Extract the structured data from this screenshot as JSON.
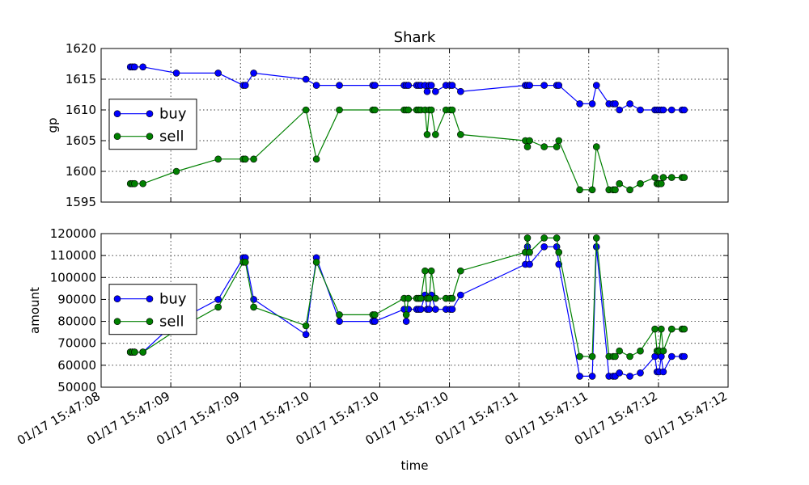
{
  "colors": {
    "buy": "#0000ff",
    "sell": "#008000"
  },
  "chart_data": [
    {
      "type": "line",
      "title": "Shark",
      "xlabel": "",
      "ylabel": "gp",
      "ylim": [
        1595,
        1620
      ],
      "yticks": [
        1595,
        1600,
        1605,
        1610,
        1615,
        1620
      ],
      "grid": true,
      "legend_position": "center-left",
      "xlim": [
        0,
        30
      ],
      "series": [
        {
          "name": "buy",
          "color": "#0000ff",
          "x": [
            1.4,
            1.5,
            1.6,
            2.0,
            3.6,
            5.6,
            6.8,
            6.9,
            7.3,
            9.8,
            10.3,
            11.4,
            13.0,
            13.1,
            14.5,
            14.6,
            14.7,
            15.1,
            15.2,
            15.3,
            15.5,
            15.6,
            15.7,
            15.8,
            16.0,
            16.5,
            16.7,
            16.8,
            17.2,
            20.3,
            20.4,
            20.5,
            21.2,
            21.8,
            21.9,
            22.9,
            23.5,
            23.7,
            24.3,
            24.5,
            24.6,
            24.8,
            25.3,
            25.8,
            26.5,
            26.6,
            26.7,
            26.8,
            26.9,
            27.3,
            27.8,
            27.9
          ],
          "values": [
            1617,
            1617,
            1617,
            1617,
            1616,
            1616,
            1614,
            1614,
            1616,
            1615,
            1614,
            1614,
            1614,
            1614,
            1614,
            1614,
            1614,
            1614,
            1614,
            1614,
            1614,
            1613,
            1614,
            1614,
            1613,
            1614,
            1614,
            1614,
            1613,
            1614,
            1614,
            1614,
            1614,
            1614,
            1614,
            1611,
            1611,
            1614,
            1611,
            1611,
            1611,
            1610,
            1611,
            1610,
            1610,
            1610,
            1610,
            1610,
            1610,
            1610,
            1610,
            1610
          ]
        },
        {
          "name": "sell",
          "color": "#008000",
          "x": [
            1.4,
            1.5,
            1.6,
            2.0,
            3.6,
            5.6,
            6.8,
            6.9,
            7.3,
            9.8,
            10.3,
            11.4,
            13.0,
            13.1,
            14.5,
            14.6,
            14.7,
            15.1,
            15.2,
            15.3,
            15.5,
            15.6,
            15.7,
            15.8,
            16.0,
            16.5,
            16.7,
            16.8,
            17.2,
            20.3,
            20.4,
            20.5,
            21.2,
            21.8,
            21.9,
            22.9,
            23.5,
            23.7,
            24.3,
            24.5,
            24.6,
            24.8,
            25.3,
            25.8,
            26.5,
            26.6,
            26.7,
            26.8,
            26.9,
            27.3,
            27.8,
            27.9
          ],
          "values": [
            1598,
            1598,
            1598,
            1598,
            1600,
            1602,
            1602,
            1602,
            1602,
            1610,
            1602,
            1610,
            1610,
            1610,
            1610,
            1610,
            1610,
            1610,
            1610,
            1610,
            1610,
            1606,
            1610,
            1610,
            1606,
            1610,
            1610,
            1610,
            1606,
            1605,
            1604,
            1605,
            1604,
            1604,
            1605,
            1597,
            1597,
            1604,
            1597,
            1597,
            1597,
            1598,
            1597,
            1598,
            1599,
            1598,
            1598,
            1598,
            1599,
            1599,
            1599,
            1599
          ]
        }
      ]
    },
    {
      "type": "line",
      "title": "",
      "xlabel": "time",
      "ylabel": "amount",
      "ylim": [
        50000,
        120000
      ],
      "yticks": [
        50000,
        60000,
        70000,
        80000,
        90000,
        100000,
        110000,
        120000
      ],
      "grid": true,
      "legend_position": "center-left",
      "xlim": [
        0,
        30
      ],
      "xtick_labels": [
        "01/17 15:47:08",
        "01/17 15:47:09",
        "01/17 15:47:09",
        "01/17 15:47:10",
        "01/17 15:47:10",
        "01/17 15:47:10",
        "01/17 15:47:11",
        "01/17 15:47:11",
        "01/17 15:47:12",
        "01/17 15:47:12"
      ],
      "series": [
        {
          "name": "buy",
          "color": "#0000ff",
          "x": [
            1.4,
            1.5,
            1.6,
            2.0,
            3.6,
            5.6,
            6.8,
            6.9,
            7.3,
            9.8,
            10.3,
            11.4,
            13.0,
            13.1,
            14.5,
            14.6,
            14.7,
            15.1,
            15.2,
            15.3,
            15.5,
            15.6,
            15.7,
            15.8,
            16.0,
            16.5,
            16.7,
            16.8,
            17.2,
            20.3,
            20.4,
            20.5,
            21.2,
            21.8,
            21.9,
            22.9,
            23.5,
            23.7,
            24.3,
            24.5,
            24.6,
            24.8,
            25.3,
            25.8,
            26.5,
            26.6,
            26.7,
            26.8,
            26.9,
            27.3,
            27.8,
            27.9
          ],
          "values": [
            66000,
            66000,
            66000,
            66000,
            80000,
            90000,
            109000,
            109000,
            90000,
            74000,
            109000,
            80000,
            80000,
            80000,
            85500,
            80000,
            85500,
            85500,
            85500,
            85500,
            92000,
            85500,
            85500,
            92000,
            85500,
            85500,
            85500,
            85500,
            92000,
            106000,
            114000,
            106000,
            114000,
            114000,
            106000,
            55000,
            55000,
            114000,
            55000,
            55000,
            55000,
            56500,
            55000,
            56500,
            64000,
            57000,
            57000,
            64000,
            57000,
            64000,
            64000,
            64000
          ]
        },
        {
          "name": "sell",
          "color": "#008000",
          "x": [
            1.4,
            1.5,
            1.6,
            2.0,
            3.6,
            5.6,
            6.8,
            6.9,
            7.3,
            9.8,
            10.3,
            11.4,
            13.0,
            13.1,
            14.5,
            14.6,
            14.7,
            15.1,
            15.2,
            15.3,
            15.5,
            15.6,
            15.7,
            15.8,
            16.0,
            16.5,
            16.7,
            16.8,
            17.2,
            20.3,
            20.4,
            20.5,
            21.2,
            21.8,
            21.9,
            22.9,
            23.5,
            23.7,
            24.3,
            24.5,
            24.6,
            24.8,
            25.3,
            25.8,
            26.5,
            26.6,
            26.7,
            26.8,
            26.9,
            27.3,
            27.8,
            27.9
          ],
          "values": [
            66000,
            66000,
            66000,
            66000,
            76000,
            86500,
            107000,
            107000,
            86500,
            78000,
            107000,
            83000,
            83000,
            83000,
            90500,
            83000,
            90500,
            90500,
            90500,
            90500,
            103000,
            90500,
            90500,
            103000,
            90500,
            90500,
            90500,
            90500,
            103000,
            111500,
            118000,
            111500,
            118000,
            118000,
            111500,
            64000,
            64000,
            118000,
            64000,
            64000,
            64000,
            66500,
            64000,
            66500,
            76500,
            66500,
            66500,
            76500,
            66500,
            76500,
            76500,
            76500
          ]
        }
      ]
    }
  ]
}
